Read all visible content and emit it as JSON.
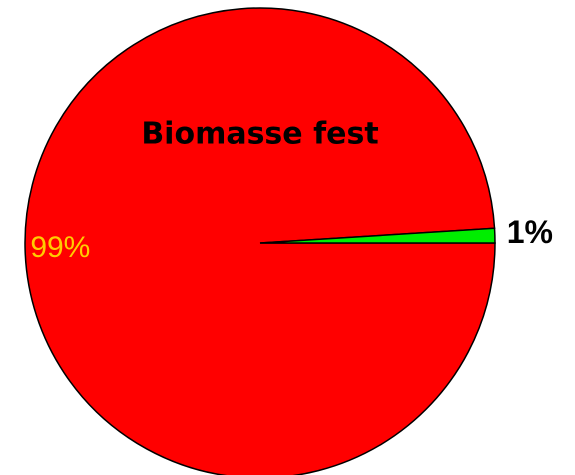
{
  "chart_data": {
    "type": "pie",
    "title": "Biomasse fest",
    "values": [
      99,
      1
    ],
    "value_labels": [
      "99%",
      "1%"
    ],
    "colors": [
      "#ff0000",
      "#00ee00"
    ],
    "label_colors": [
      "#ffcc00",
      "#000000"
    ]
  }
}
